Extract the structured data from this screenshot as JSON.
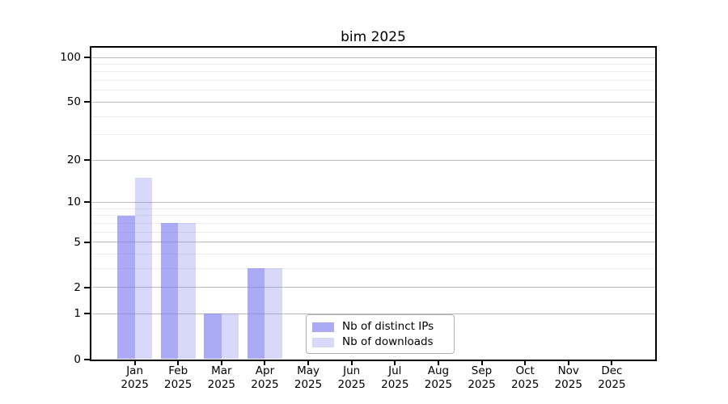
{
  "chart_data": {
    "type": "bar",
    "title": "bim 2025",
    "categories": [
      "Jan",
      "Feb",
      "Mar",
      "Apr",
      "May",
      "Jun",
      "Jul",
      "Aug",
      "Sep",
      "Oct",
      "Nov",
      "Dec"
    ],
    "year_label": "2025",
    "series": [
      {
        "name": "Nb of distinct IPs",
        "color": "rgba(120,120,240,0.63)",
        "values": [
          8,
          7,
          1,
          3,
          0,
          0,
          0,
          0,
          0,
          0,
          0,
          0
        ]
      },
      {
        "name": "Nb of downloads",
        "color": "rgba(120,120,240,0.29)",
        "values": [
          15,
          7,
          1,
          3,
          0,
          0,
          0,
          0,
          0,
          0,
          0,
          0
        ]
      }
    ],
    "scale": "log1p",
    "ylim": [
      0,
      117
    ],
    "yticks_major": [
      0,
      1,
      2,
      5,
      10,
      20,
      50,
      100
    ],
    "yticks_minor": [
      3,
      4,
      6,
      7,
      8,
      9,
      30,
      40,
      60,
      70,
      80,
      90
    ],
    "grid": "horizontal",
    "legend_position": "lower center",
    "colors": {
      "bar_distinct_ips": "#aaaaf5",
      "bar_downloads": "#d8d8f8",
      "grid_major": "#bdbdbd",
      "grid_minor": "#ececec",
      "axis": "#000000"
    }
  }
}
